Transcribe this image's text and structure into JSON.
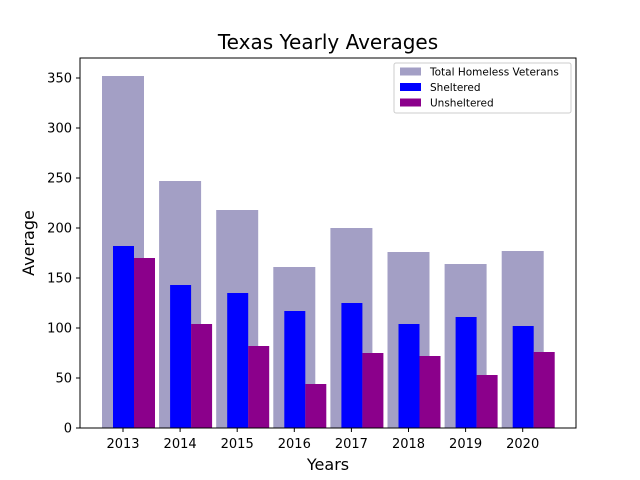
{
  "chart_data": {
    "type": "bar",
    "title": "Texas Yearly Averages",
    "xlabel": "Years",
    "ylabel": "Average",
    "categories": [
      "2013",
      "2014",
      "2015",
      "2016",
      "2017",
      "2018",
      "2019",
      "2020"
    ],
    "series": [
      {
        "name": "Total Homeless Veterans",
        "color": "#a39fc5",
        "values": [
          352,
          247,
          218,
          161,
          200,
          176,
          164,
          177
        ]
      },
      {
        "name": "Sheltered",
        "color": "#0000ff",
        "values": [
          182,
          143,
          135,
          117,
          125,
          104,
          111,
          102
        ]
      },
      {
        "name": "Unsheltered",
        "color": "#8b008b",
        "values": [
          170,
          104,
          82,
          44,
          75,
          72,
          53,
          76
        ]
      }
    ],
    "ylim": [
      0,
      370
    ],
    "yticks": [
      0,
      50,
      100,
      150,
      200,
      250,
      300,
      350
    ],
    "legend_position": "top-right",
    "grid": false
  }
}
